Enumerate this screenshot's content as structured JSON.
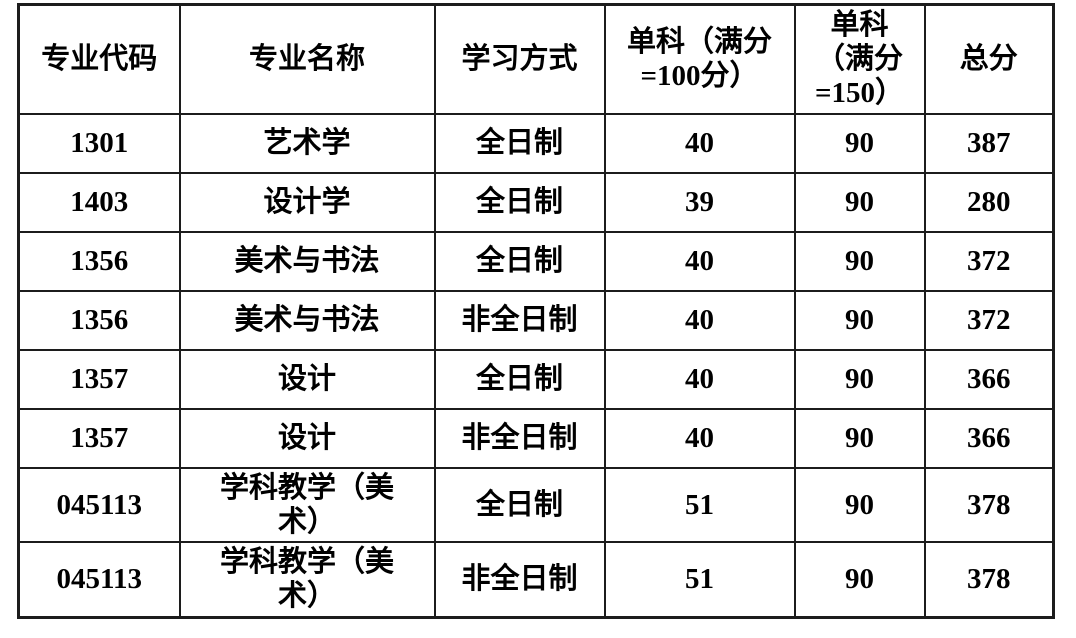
{
  "colors": {
    "border": "#1c1c1c",
    "background": "#ffffff",
    "text": "#000000"
  },
  "table": {
    "columns": [
      {
        "key": "code",
        "label": "专业代码"
      },
      {
        "key": "name",
        "label": "专业名称"
      },
      {
        "key": "mode",
        "label": "学习方式"
      },
      {
        "key": "single-100",
        "label": "单科（满分\n=100分）"
      },
      {
        "key": "single-150",
        "label": "单科\n（满分\n=150）"
      },
      {
        "key": "total",
        "label": "总分"
      }
    ],
    "rows": [
      [
        "1301",
        "艺术学",
        "全日制",
        "40",
        "90",
        "387"
      ],
      [
        "1403",
        "设计学",
        "全日制",
        "39",
        "90",
        "280"
      ],
      [
        "1356",
        "美术与书法",
        "全日制",
        "40",
        "90",
        "372"
      ],
      [
        "1356",
        "美术与书法",
        "非全日制",
        "40",
        "90",
        "372"
      ],
      [
        "1357",
        "设计",
        "全日制",
        "40",
        "90",
        "366"
      ],
      [
        "1357",
        "设计",
        "非全日制",
        "40",
        "90",
        "366"
      ],
      [
        "045113",
        "学科教学（美\n术）",
        "全日制",
        "51",
        "90",
        "378"
      ],
      [
        "045113",
        "学科教学（美\n术）",
        "非全日制",
        "51",
        "90",
        "378"
      ]
    ]
  }
}
